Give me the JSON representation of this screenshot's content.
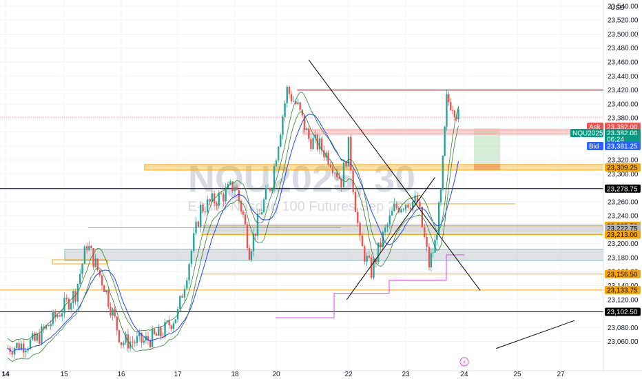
{
  "watermark": {
    "symbol": "NQU2025, 30",
    "name": "E-mini Nasdaq 100 Futures Sep 2025"
  },
  "currency": "USD",
  "colors": {
    "up": "#26a69a",
    "down": "#ef5350",
    "ask": "#ef5350",
    "bid": "#2962ff",
    "price_tag": "#089981",
    "orange": "#f7a600",
    "black": "#000000",
    "red_zone": "#f28b8b",
    "grey_zone": "#b2b5be",
    "green_zone": "#a5d6a7",
    "magenta": "#e040fb",
    "ma_green": "#2e7d32",
    "ma_blue": "#1e40ff"
  },
  "price_labels": [
    {
      "price": 23382.0,
      "text": "23,382.00",
      "kind": "ask",
      "tag": "Ask"
    },
    {
      "price": 23382.0,
      "text": "23,382.00",
      "kind": "last",
      "tag": "NQU2025"
    },
    {
      "price": 23375.0,
      "text": "06:24",
      "kind": "countdown"
    },
    {
      "price": 23381.25,
      "text": "23,381.25",
      "kind": "bid",
      "tag": "Bid"
    },
    {
      "price": 23309.25,
      "text": "23,309.25",
      "kind": "orange"
    },
    {
      "price": 23278.75,
      "text": "23,278.75",
      "kind": "black"
    },
    {
      "price": 23225.5,
      "text": "23,225.50",
      "kind": "orange"
    },
    {
      "price": 23222.75,
      "text": "23,222.75",
      "kind": "grey"
    },
    {
      "price": 23213.0,
      "text": "23,213.00",
      "kind": "orange"
    },
    {
      "price": 23156.5,
      "text": "23,156.50",
      "kind": "orange"
    },
    {
      "price": 23133.75,
      "text": "23,133.75",
      "kind": "orange"
    },
    {
      "price": 23102.5,
      "text": "23,102.50",
      "kind": "black"
    }
  ],
  "event_marker": "⚡",
  "chart_data": {
    "type": "candlestick",
    "x_ticks": [
      "14",
      "15",
      "16",
      "17",
      "18",
      "20",
      "22",
      "23",
      "24",
      "25",
      "27"
    ],
    "y_ticks": [
      "23,060.00",
      "23,080.00",
      "23,100.00",
      "23,120.00",
      "23,140.00",
      "23,160.00",
      "23,180.00",
      "23,200.00",
      "23,220.00",
      "23,240.00",
      "23,260.00",
      "23,280.00",
      "23,300.00",
      "23,320.00",
      "23,340.00",
      "23,360.00",
      "23,380.00",
      "23,400.00",
      "23,420.00",
      "23,440.00",
      "23,460.00",
      "23,480.00",
      "23,500.00",
      "23,520.00",
      "23,540.00"
    ],
    "y_tick_values": [
      23060,
      23080,
      23100,
      23120,
      23140,
      23160,
      23180,
      23200,
      23220,
      23240,
      23260,
      23280,
      23300,
      23320,
      23340,
      23360,
      23380,
      23400,
      23420,
      23440,
      23460,
      23480,
      23500,
      23520,
      23540
    ],
    "ylim": [
      23050,
      23560
    ],
    "close_path": [
      [
        14.0,
        23050
      ],
      [
        14.5,
        23060
      ],
      [
        15.2,
        23130
      ],
      [
        15.4,
        23200
      ],
      [
        15.7,
        23140
      ],
      [
        16.0,
        23060
      ],
      [
        16.4,
        23060
      ],
      [
        16.7,
        23070
      ],
      [
        17.0,
        23100
      ],
      [
        17.4,
        23250
      ],
      [
        17.8,
        23270
      ],
      [
        18.0,
        23285
      ],
      [
        18.4,
        23240
      ],
      [
        18.7,
        23190
      ],
      [
        19.0,
        23220
      ],
      [
        19.4,
        23260
      ],
      [
        19.8,
        23290
      ],
      [
        20.0,
        23330
      ],
      [
        20.3,
        23420
      ],
      [
        20.6,
        23395
      ],
      [
        20.9,
        23350
      ],
      [
        21.2,
        23340
      ],
      [
        21.5,
        23320
      ],
      [
        21.8,
        23290
      ],
      [
        22.0,
        23340
      ],
      [
        22.2,
        23200
      ],
      [
        22.4,
        23160
      ],
      [
        22.6,
        23210
      ],
      [
        22.8,
        23250
      ],
      [
        23.0,
        23260
      ],
      [
        23.2,
        23260
      ],
      [
        23.4,
        23170
      ],
      [
        23.5,
        23200
      ],
      [
        23.6,
        23270
      ],
      [
        23.7,
        23405
      ],
      [
        23.8,
        23400
      ],
      [
        23.9,
        23382
      ]
    ],
    "horizontal_levels": [
      {
        "price": 23420,
        "color": "red_zone",
        "style": "band",
        "height": 2
      },
      {
        "price": 23381,
        "color": "red_zone",
        "style": "dotted"
      },
      {
        "price": 23360,
        "color": "red_zone",
        "style": "band",
        "height": 6
      },
      {
        "price": 23309.25,
        "color": "orange",
        "style": "band",
        "height": 8
      },
      {
        "price": 23278.75,
        "color": "black",
        "style": "line"
      },
      {
        "price": 23225.5,
        "color": "orange",
        "style": "line"
      },
      {
        "price": 23213,
        "color": "orange",
        "style": "line"
      },
      {
        "price": 23156.5,
        "color": "orange",
        "style": "line"
      },
      {
        "price": 23133.75,
        "color": "orange",
        "style": "line"
      },
      {
        "price": 23102.5,
        "color": "black",
        "style": "line"
      }
    ],
    "trendlines": [
      {
        "from": [
          20.9,
          23463
        ],
        "to": [
          24.3,
          23133
        ]
      },
      {
        "from": [
          21.95,
          23120
        ],
        "to": [
          23.5,
          23295
        ]
      },
      {
        "from": [
          24.6,
          23050
        ],
        "to": [
          27.5,
          23090
        ]
      }
    ]
  }
}
